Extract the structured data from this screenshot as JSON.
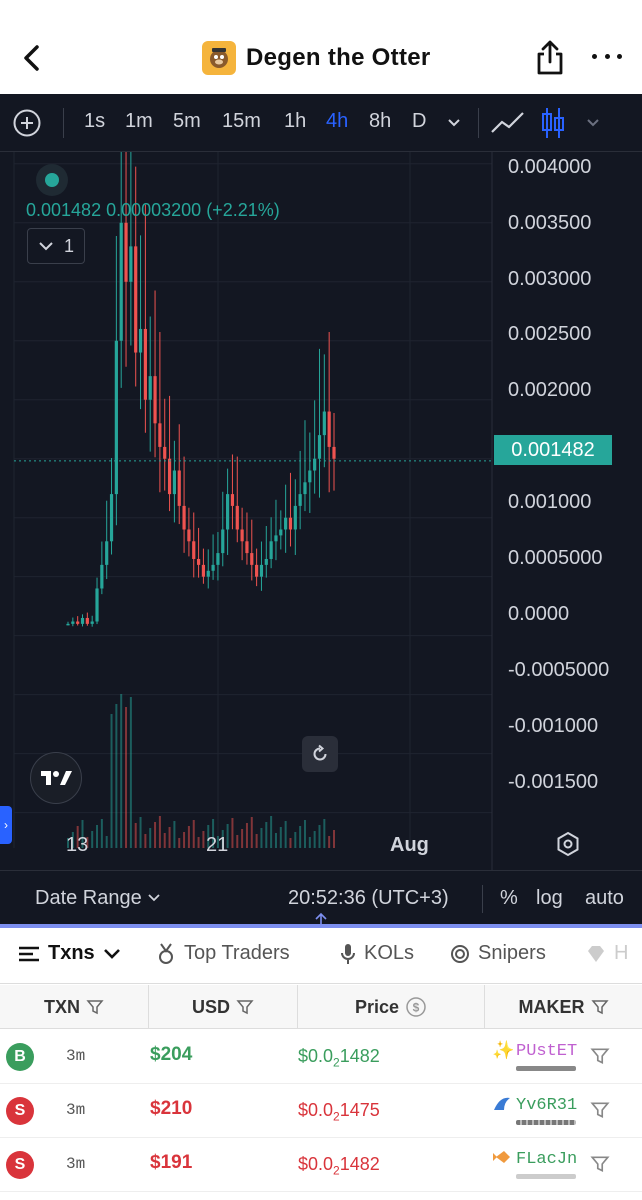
{
  "header": {
    "title": "Degen the Otter"
  },
  "toolbar": {
    "timeframes": [
      "1s",
      "1m",
      "5m",
      "15m",
      "1h",
      "4h",
      "8h",
      "D"
    ],
    "active_timeframe": "4h"
  },
  "chart": {
    "legend_value": "0.001482",
    "legend_change": "0.00003200 (+2.21%)",
    "collapse_count": "1",
    "current_price": "0.001482",
    "colors": {
      "up": "#26a69a",
      "down": "#ef5350",
      "background": "#131722",
      "grid": "#1f2430"
    }
  },
  "chart_data": {
    "type": "candlestick",
    "y_axis_ticks": [
      "0.004000",
      "0.003500",
      "0.003000",
      "0.002500",
      "0.002000",
      "0.001000",
      "0.0005000",
      "0.0000",
      "-0.0005000",
      "-0.001000",
      "-0.001500"
    ],
    "x_axis_ticks": [
      "13",
      "21",
      "Aug"
    ],
    "ylim": [
      -0.0018,
      0.0041
    ],
    "last_price": 0.001482,
    "approx_closes": [
      0.0001,
      0.00012,
      0.0001,
      0.00015,
      0.0001,
      0.00012,
      0.0004,
      0.0006,
      0.0008,
      0.0012,
      0.0025,
      0.0035,
      0.003,
      0.0033,
      0.0024,
      0.0026,
      0.002,
      0.0022,
      0.0018,
      0.0016,
      0.0015,
      0.0012,
      0.0014,
      0.0011,
      0.0009,
      0.0008,
      0.00065,
      0.0006,
      0.0005,
      0.00055,
      0.0006,
      0.0007,
      0.0009,
      0.0012,
      0.0011,
      0.0009,
      0.0008,
      0.0007,
      0.0006,
      0.0005,
      0.0006,
      0.00065,
      0.0008,
      0.00085,
      0.0009,
      0.001,
      0.0009,
      0.0011,
      0.0012,
      0.0013,
      0.0014,
      0.0015,
      0.0017,
      0.0019,
      0.0016,
      0.0015
    ]
  },
  "bottom_bar": {
    "date_range": "Date Range",
    "time": "20:52:36 (UTC+3)",
    "percent": "%",
    "log": "log",
    "auto": "auto"
  },
  "tabs": [
    {
      "label": "Txns",
      "icon": "list-icon",
      "active": true
    },
    {
      "label": "Top Traders",
      "icon": "medal-icon"
    },
    {
      "label": "KOLs",
      "icon": "microphone-icon"
    },
    {
      "label": "Snipers",
      "icon": "target-icon"
    },
    {
      "label": "H",
      "icon": "diamond-icon"
    }
  ],
  "table": {
    "headers": [
      "TXN",
      "USD",
      "Price",
      "MAKER"
    ],
    "rows": [
      {
        "type": "B",
        "age": "3m",
        "usd": "$204",
        "price_prefix": "$0.0",
        "price_sub": "2",
        "price_digits": "1482",
        "maker": "PUstET",
        "side": "buy"
      },
      {
        "type": "S",
        "age": "3m",
        "usd": "$210",
        "price_prefix": "$0.0",
        "price_sub": "2",
        "price_digits": "1475",
        "maker": "Yv6R31",
        "side": "sell"
      },
      {
        "type": "S",
        "age": "3m",
        "usd": "$191",
        "price_prefix": "$0.0",
        "price_sub": "2",
        "price_digits": "1482",
        "maker": "FLacJn",
        "side": "sell"
      }
    ]
  }
}
